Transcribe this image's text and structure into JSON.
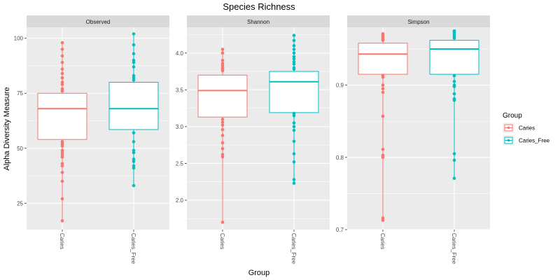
{
  "chart_data": {
    "type": "boxplot",
    "title": "Species Richness",
    "xlabel": "Group",
    "ylabel": "Alpha Diversity Measure",
    "categories": [
      "Caries",
      "Caries_Free"
    ],
    "legend": {
      "title": "Group",
      "position": "right",
      "entries": [
        {
          "name": "Caries",
          "color": "#F8766D"
        },
        {
          "name": "Caries_Free",
          "color": "#00BFC4"
        }
      ]
    },
    "grid": true,
    "panel_background": "#EBEBEB",
    "strip_background": "#D9D9D9",
    "panels": [
      {
        "name": "Observed",
        "ylim": [
          13,
          105
        ],
        "yticks": [
          25,
          50,
          75,
          100
        ],
        "ytick_labels": [
          "25",
          "50",
          "75",
          "100"
        ],
        "groups": [
          {
            "name": "Caries",
            "color": "#F8766D",
            "whisker_low": 17,
            "q1": 54,
            "median": 68,
            "q3": 75,
            "whisker_high": 98,
            "points": [
              98,
              95,
              92,
              89,
              86,
              84,
              82,
              80,
              79,
              77,
              76,
              53,
              52,
              51,
              49,
              48,
              47,
              46,
              43,
              42,
              39,
              35,
              27,
              17
            ]
          },
          {
            "name": "Caries_Free",
            "color": "#00BFC4",
            "whisker_low": 33,
            "q1": 58.5,
            "median": 68,
            "q3": 80,
            "whisker_high": 102,
            "points": [
              102,
              97,
              93,
              90,
              89,
              87,
              83,
              82,
              81,
              57,
              53,
              49,
              48,
              45,
              44,
              42,
              41,
              33
            ]
          }
        ]
      },
      {
        "name": "Shannon",
        "ylim": [
          1.6,
          4.35
        ],
        "yticks": [
          2.0,
          2.5,
          3.0,
          3.5,
          4.0
        ],
        "ytick_labels": [
          "2.0",
          "2.5",
          "3.0",
          "3.5",
          "4.0"
        ],
        "groups": [
          {
            "name": "Caries",
            "color": "#F8766D",
            "whisker_low": 1.7,
            "q1": 3.13,
            "median": 3.49,
            "q3": 3.7,
            "whisker_high": 4.05,
            "points": [
              4.05,
              4.0,
              3.9,
              3.86,
              3.83,
              3.8,
              3.78,
              3.76,
              3.1,
              3.06,
              3.02,
              2.96,
              2.88,
              2.78,
              2.7,
              2.62,
              2.59,
              1.7
            ]
          },
          {
            "name": "Caries_Free",
            "color": "#00BFC4",
            "whisker_low": 2.23,
            "q1": 3.19,
            "median": 3.61,
            "q3": 3.75,
            "whisker_high": 4.24,
            "points": [
              4.24,
              4.17,
              4.1,
              4.05,
              4.0,
              3.95,
              3.92,
              3.88,
              3.85,
              3.8,
              3.78,
              3.18,
              3.15,
              3.05,
              3.0,
              2.95,
              2.8,
              2.63,
              2.52,
              2.28,
              2.23
            ]
          }
        ]
      },
      {
        "name": "Simpson",
        "ylim": [
          0.7,
          0.98
        ],
        "yticks": [
          0.7,
          0.8,
          0.9
        ],
        "ytick_labels": [
          "0.7",
          "0.8",
          "0.9"
        ],
        "groups": [
          {
            "name": "Caries",
            "color": "#F8766D",
            "whisker_low": 0.713,
            "q1": 0.915,
            "median": 0.943,
            "q3": 0.958,
            "whisker_high": 0.971,
            "points": [
              0.971,
              0.969,
              0.967,
              0.965,
              0.963,
              0.962,
              0.913,
              0.911,
              0.9,
              0.895,
              0.89,
              0.857,
              0.811,
              0.803,
              0.801,
              0.8,
              0.716,
              0.713
            ]
          },
          {
            "name": "Caries_Free",
            "color": "#00BFC4",
            "whisker_low": 0.771,
            "q1": 0.915,
            "median": 0.95,
            "q3": 0.962,
            "whisker_high": 0.975,
            "points": [
              0.975,
              0.973,
              0.971,
              0.969,
              0.967,
              0.965,
              0.913,
              0.905,
              0.9,
              0.898,
              0.888,
              0.881,
              0.879,
              0.805,
              0.796,
              0.771
            ]
          }
        ]
      }
    ]
  }
}
